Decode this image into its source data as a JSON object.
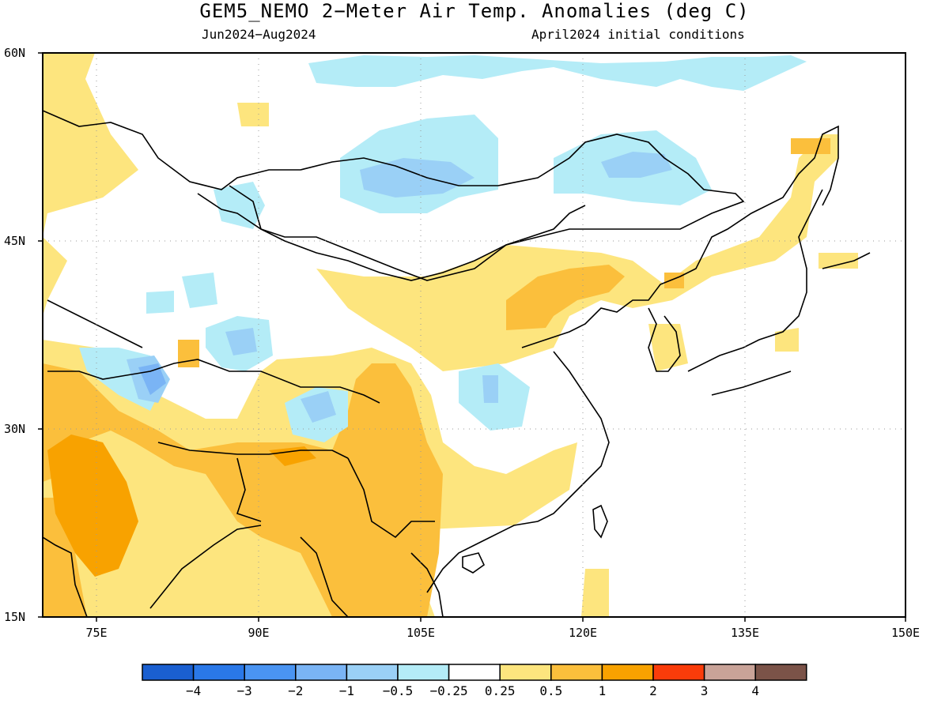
{
  "title": "GEM5_NEMO 2−Meter Air Temp. Anomalies (deg C)",
  "subtitle_left": "Jun2024−Aug2024",
  "subtitle_right": "April2024 initial conditions",
  "axes": {
    "lat_labels": [
      "60N",
      "45N",
      "30N",
      "15N"
    ],
    "lon_labels": [
      "75E",
      "90E",
      "105E",
      "120E",
      "135E",
      "150E"
    ],
    "grid": "dotted"
  },
  "colorbar": {
    "labels": [
      "−4",
      "−3",
      "−2",
      "−1",
      "−0.5",
      "−0.25",
      "0.25",
      "0.5",
      "1",
      "2",
      "3",
      "4"
    ],
    "colors": [
      "#1a5fd0",
      "#2a78e8",
      "#4a94f2",
      "#7ab4f5",
      "#9ad0f6",
      "#b4ecf7",
      "#ffffff",
      "#fde57e",
      "#fbbf3c",
      "#f8a200",
      "#fa3c0a",
      "#c9a398",
      "#7b5348"
    ]
  },
  "colors": {
    "light_blue": "#b4ecf7",
    "mid_blue": "#9ad0f6",
    "blue": "#7ab4f5",
    "dark_blue": "#4a94f2",
    "light_yellow": "#fde57e",
    "orange_light": "#fbbf3c",
    "orange": "#f8a200"
  }
}
